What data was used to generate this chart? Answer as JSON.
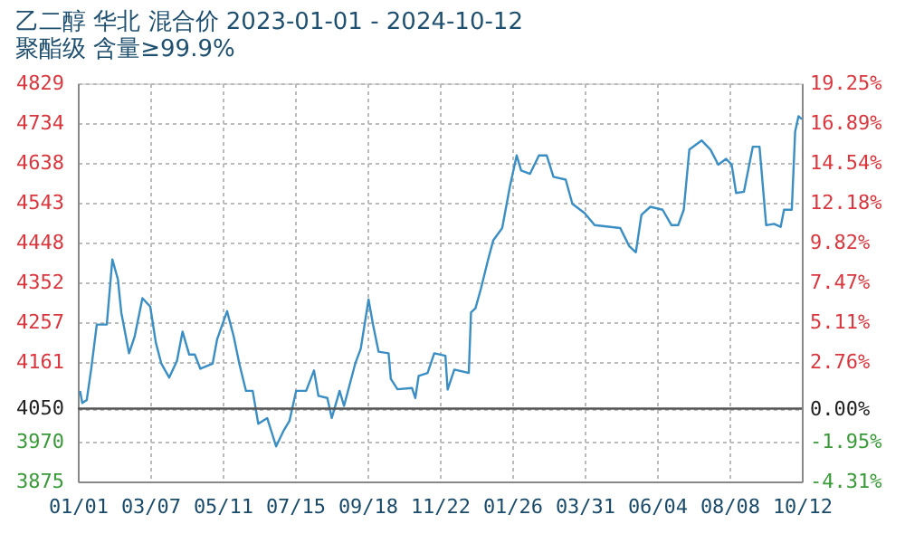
{
  "chart_data": {
    "type": "line",
    "title": "乙二醇 华北 混合价 2023-01-01 - 2024-10-12",
    "subtitle": "聚酯级 含量≥99.9%",
    "x": [
      "2023-01-03",
      "2023-01-05",
      "2023-01-09",
      "2023-01-13",
      "2023-01-18",
      "2023-01-27",
      "2023-02-01",
      "2023-02-06",
      "2023-02-09",
      "2023-02-16",
      "2023-02-21",
      "2023-02-28",
      "2023-03-07",
      "2023-03-12",
      "2023-03-17",
      "2023-03-24",
      "2023-03-31",
      "2023-04-05",
      "2023-04-11",
      "2023-04-16",
      "2023-04-21",
      "2023-05-02",
      "2023-05-06",
      "2023-05-15",
      "2023-05-21",
      "2023-05-26",
      "2023-06-01",
      "2023-06-07",
      "2023-06-12",
      "2023-06-20",
      "2023-06-28",
      "2023-07-05",
      "2023-07-10",
      "2023-07-16",
      "2023-07-25",
      "2023-08-01",
      "2023-08-05",
      "2023-08-13",
      "2023-08-17",
      "2023-08-24",
      "2023-08-28",
      "2023-09-07",
      "2023-09-12",
      "2023-09-19",
      "2023-09-23",
      "2023-09-28",
      "2023-10-07",
      "2023-10-09",
      "2023-10-15",
      "2023-10-28",
      "2023-10-31",
      "2023-11-03",
      "2023-11-11",
      "2023-11-17",
      "2023-11-27",
      "2023-11-29",
      "2023-12-05",
      "2023-12-18",
      "2023-12-20",
      "2023-12-24",
      "2023-12-29",
      "2024-01-04",
      "2024-01-09",
      "2024-01-17",
      "2024-01-24",
      "2024-01-30",
      "2024-02-03",
      "2024-02-11",
      "2024-02-19",
      "2024-02-26",
      "2024-03-03",
      "2024-03-14",
      "2024-03-20",
      "2024-03-31",
      "2024-04-09",
      "2024-05-02",
      "2024-05-10",
      "2024-05-16",
      "2024-05-21",
      "2024-05-29",
      "2024-06-09",
      "2024-06-17",
      "2024-06-23",
      "2024-06-28",
      "2024-07-03",
      "2024-07-14",
      "2024-07-22",
      "2024-07-29",
      "2024-08-05",
      "2024-08-10",
      "2024-08-14",
      "2024-08-21",
      "2024-08-29",
      "2024-09-04",
      "2024-09-10",
      "2024-09-17",
      "2024-09-23",
      "2024-09-26",
      "2024-10-03",
      "2024-10-06",
      "2024-10-09",
      "2024-10-12"
    ],
    "series": [
      {
        "color": "#3a8ec4",
        "values": [
          4092,
          4063,
          4070,
          4144,
          4251,
          4251,
          4407,
          4359,
          4280,
          4182,
          4222,
          4314,
          4294,
          4208,
          4157,
          4124,
          4164,
          4234,
          4179,
          4179,
          4145,
          4157,
          4215,
          4283,
          4222,
          4157,
          4092,
          4092,
          4013,
          4027,
          3959,
          3998,
          4020,
          4092,
          4092,
          4141,
          4080,
          4075,
          4027,
          4092,
          4056,
          4157,
          4193,
          4311,
          4251,
          4186,
          4182,
          4121,
          4096,
          4099,
          4075,
          4128,
          4135,
          4182,
          4176,
          4095,
          4143,
          4135,
          4280,
          4290,
          4338,
          4403,
          4453,
          4482,
          4583,
          4656,
          4620,
          4612,
          4656,
          4656,
          4605,
          4598,
          4540,
          4518,
          4489,
          4482,
          4439,
          4424,
          4514,
          4533,
          4526,
          4489,
          4489,
          4526,
          4670,
          4692,
          4670,
          4634,
          4648,
          4634,
          4566,
          4569,
          4677,
          4677,
          4489,
          4492,
          4485,
          4526,
          4526,
          4713,
          4750,
          4743
        ]
      }
    ],
    "xlim": [
      "2023-01-01",
      "2024-10-12"
    ],
    "xticks": [
      {
        "value": "2023-01-01",
        "label": "01/01"
      },
      {
        "value": "2023-03-07",
        "label": "03/07"
      },
      {
        "value": "2023-05-11",
        "label": "05/11"
      },
      {
        "value": "2023-07-15",
        "label": "07/15"
      },
      {
        "value": "2023-09-18",
        "label": "09/18"
      },
      {
        "value": "2023-11-22",
        "label": "11/22"
      },
      {
        "value": "2024-01-26",
        "label": "01/26"
      },
      {
        "value": "2024-03-31",
        "label": "03/31"
      },
      {
        "value": "2024-06-04",
        "label": "06/04"
      },
      {
        "value": "2024-08-08",
        "label": "08/08"
      },
      {
        "value": "2024-10-12",
        "label": "10/12"
      }
    ],
    "ylim": [
      3875,
      4829
    ],
    "yticks": [
      3875,
      3970,
      4050,
      4161,
      4257,
      4352,
      4448,
      4543,
      4638,
      4734,
      4829
    ],
    "y2lim": [
      -4.31,
      19.25
    ],
    "y2ticks": [
      {
        "value": -4.31,
        "label": "-4.31%"
      },
      {
        "value": -1.95,
        "label": "-1.95%"
      },
      {
        "value": 0,
        "label": "0.00%"
      },
      {
        "value": 2.76,
        "label": "2.76%"
      },
      {
        "value": 5.11,
        "label": "5.11%"
      },
      {
        "value": 7.47,
        "label": "7.47%"
      },
      {
        "value": 9.82,
        "label": "9.82%"
      },
      {
        "value": 12.18,
        "label": "12.18%"
      },
      {
        "value": 14.54,
        "label": "14.54%"
      },
      {
        "value": 16.89,
        "label": "16.89%"
      },
      {
        "value": 19.25,
        "label": "19.25%"
      }
    ],
    "ref_lines": [
      {
        "axis": "y2",
        "value": 0,
        "color": "#555555"
      }
    ],
    "grid": true,
    "marker": "none",
    "line_style": "solid"
  }
}
